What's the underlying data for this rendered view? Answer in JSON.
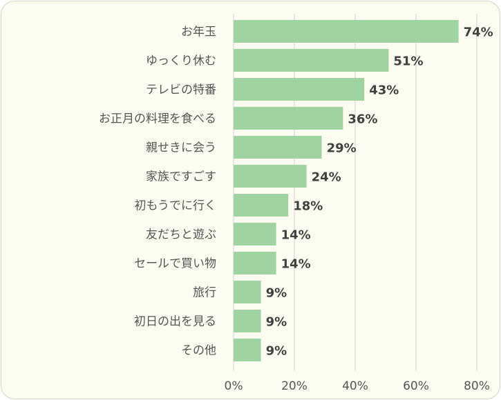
{
  "chart_data": {
    "type": "bar",
    "orientation": "horizontal",
    "categories": [
      "お年玉",
      "ゆっくり休む",
      "テレビの特番",
      "お正月の料理を食べる",
      "親せきに会う",
      "家族ですごす",
      "初もうでに行く",
      "友だちと遊ぶ",
      "セールで買い物",
      "旅行",
      "初日の出を見る",
      "その他"
    ],
    "values": [
      74,
      51,
      43,
      36,
      29,
      24,
      18,
      14,
      14,
      9,
      9,
      9
    ],
    "value_labels": [
      "74%",
      "51%",
      "43%",
      "36%",
      "29%",
      "24%",
      "18%",
      "14%",
      "14%",
      "9%",
      "9%",
      "9%"
    ],
    "xlim": [
      0,
      80
    ],
    "x_ticks": [
      0,
      20,
      40,
      60,
      80
    ],
    "x_tick_labels": [
      "0%",
      "20%",
      "40%",
      "60%",
      "80%"
    ],
    "grid": true,
    "bar_color": "#a0d3a2",
    "background_color": "#fdfcf0",
    "gridline_color": "#d9d9d9"
  }
}
